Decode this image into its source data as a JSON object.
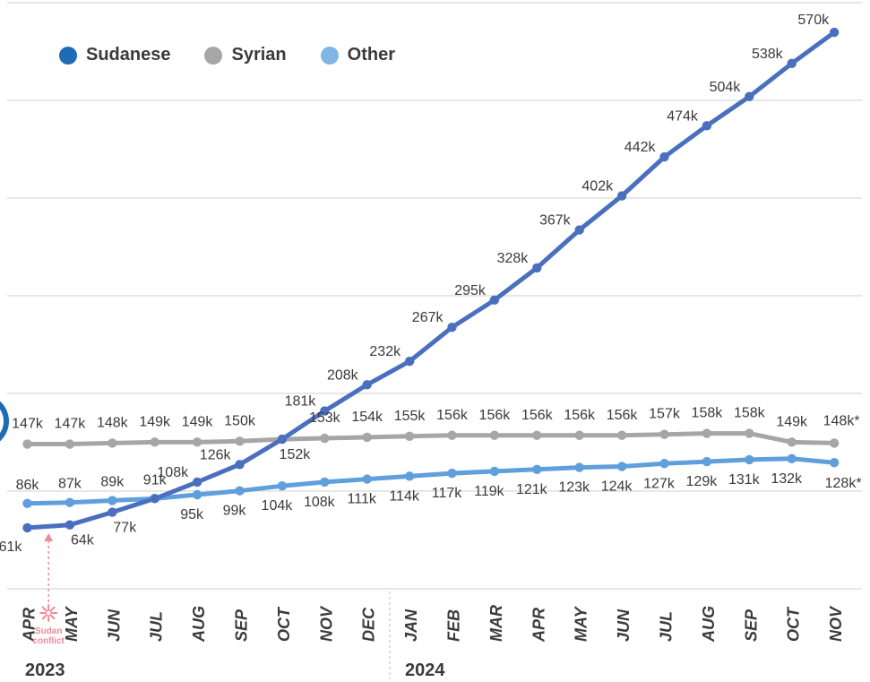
{
  "chart_data": {
    "type": "line",
    "categories": [
      "APR",
      "MAY",
      "JUN",
      "JUL",
      "AUG",
      "SEP",
      "OCT",
      "NOV",
      "DEC",
      "JAN",
      "FEB",
      "MAR",
      "APR",
      "MAY",
      "JUN",
      "JUL",
      "AUG",
      "SEP",
      "OCT",
      "NOV"
    ],
    "years": [
      {
        "label": "2023",
        "start_index": 0
      },
      {
        "label": "2024",
        "start_index": 9
      }
    ],
    "series": [
      {
        "name": "Sudanese",
        "color": "#4a6fbf",
        "values": [
          61,
          64,
          77,
          91,
          108,
          126,
          152,
          181,
          208,
          232,
          267,
          295,
          328,
          367,
          402,
          442,
          474,
          504,
          538,
          570
        ],
        "labels": [
          "61k",
          "64k",
          "77k",
          "",
          "108k",
          "126k",
          "152k",
          "181k",
          "208k",
          "232k",
          "267k",
          "295k",
          "328k",
          "367k",
          "402k",
          "442k",
          "474k",
          "504k",
          "538k",
          "570k"
        ]
      },
      {
        "name": "Syrian",
        "color": "#a6a6a6",
        "values": [
          147,
          147,
          148,
          149,
          149,
          150,
          152,
          153,
          154,
          155,
          156,
          156,
          156,
          156,
          156,
          157,
          158,
          158,
          149,
          148
        ],
        "labels": [
          "147k",
          "147k",
          "148k",
          "149k",
          "149k",
          "150k",
          "",
          "153k",
          "154k",
          "155k",
          "156k",
          "156k",
          "156k",
          "156k",
          "156k",
          "157k",
          "158k",
          "158k",
          "149k",
          "148k*"
        ]
      },
      {
        "name": "Other",
        "color": "#5f9fdc",
        "values": [
          86,
          87,
          89,
          91,
          95,
          99,
          104,
          108,
          111,
          114,
          117,
          119,
          121,
          123,
          124,
          127,
          129,
          131,
          132,
          128
        ],
        "labels": [
          "86k",
          "87k",
          "89k",
          "91k",
          "95k",
          "99k",
          "104k",
          "108k",
          "111k",
          "114k",
          "117k",
          "119k",
          "121k",
          "123k",
          "124k",
          "127k",
          "129k",
          "131k",
          "132k",
          "128k*"
        ]
      }
    ],
    "legend_colors": [
      "#1f6cb5",
      "#a6a6a6",
      "#7fb6e3"
    ],
    "annotation": {
      "text_line1": "Sudan",
      "text_line2": "conflict",
      "index": 0.5,
      "color": "#f08a9a"
    },
    "grid": true,
    "ylim": [
      0,
      600
    ]
  }
}
